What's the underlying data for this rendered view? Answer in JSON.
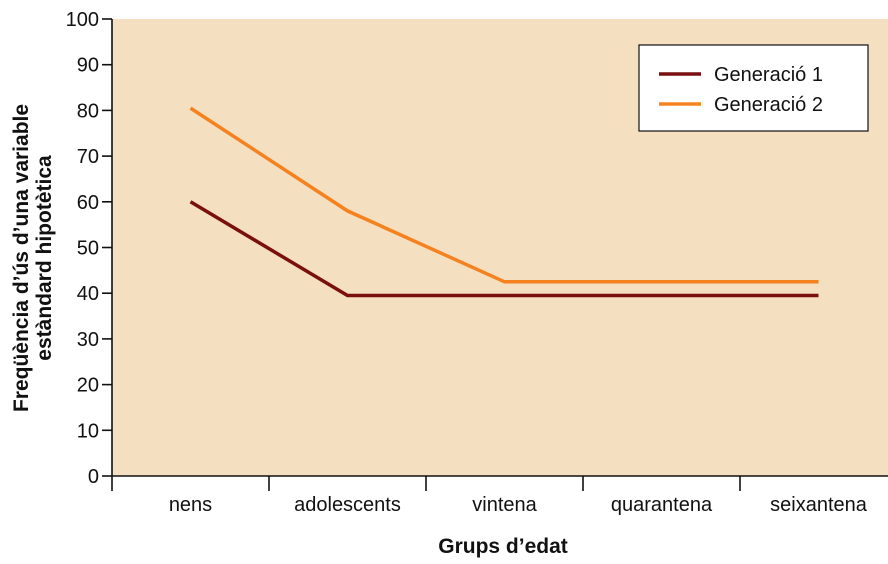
{
  "chart_data": {
    "type": "line",
    "categories": [
      "nens",
      "adolescents",
      "vintena",
      "quarantena",
      "seixantena"
    ],
    "series": [
      {
        "name": "Generació 1",
        "values": [
          60,
          39.5,
          39.5,
          39.5,
          39.5
        ],
        "color": "#7a0f0f"
      },
      {
        "name": "Generació 2",
        "values": [
          80.5,
          58,
          42.5,
          42.5,
          42.5
        ],
        "color": "#f5821f"
      }
    ],
    "xlabel": "Grups d’edat",
    "ylabel_lines": [
      "Freqüència d’ús d’una variable",
      "estàndard hipotètica"
    ],
    "ylim": [
      0,
      100
    ],
    "yticks": [
      0,
      10,
      20,
      30,
      40,
      50,
      60,
      70,
      80,
      90,
      100
    ],
    "plot_background": "#f4dfc1",
    "grid": false,
    "legend_position": "top-right"
  }
}
